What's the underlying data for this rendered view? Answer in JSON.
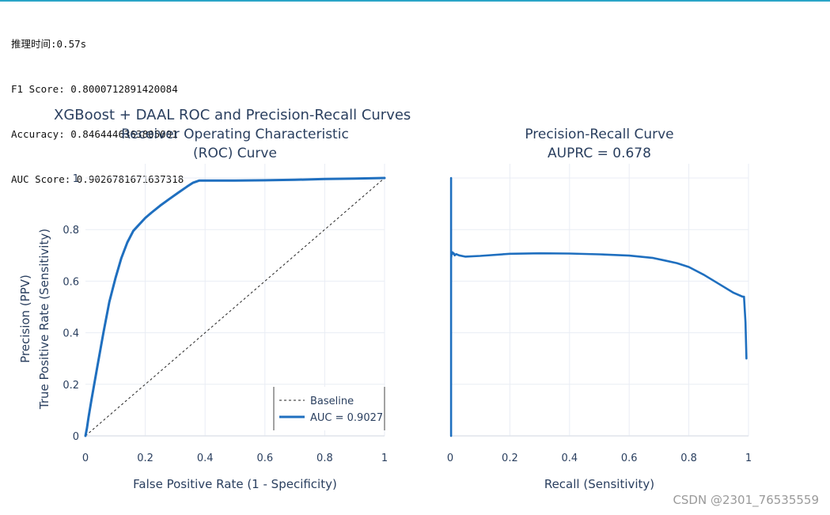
{
  "console": {
    "lines": [
      "推理时间:0.57s",
      "F1 Score: 0.8000712891420084",
      "Accuracy: 0.8464446363805001",
      "AUC Score: 0.9026781671637318"
    ]
  },
  "watermark": "CSDN @2301_76535559",
  "colors": {
    "curve": "#1f6fbf",
    "grid": "#e9edf4",
    "text": "#2a3f5f",
    "baseline": "#222222"
  },
  "chart_data": {
    "type": "line",
    "title": "XGBoost + DAAL ROC and Precision-Recall Curves",
    "subplots": [
      {
        "title_lines": [
          "Receiver Operating Characteristic",
          "(ROC) Curve"
        ],
        "xlabel": "False Positive Rate (1 - Specificity)",
        "ylabel_lines": [
          "Precision (PPV)",
          "True Positive Rate (Sensitivity)"
        ],
        "xlim": [
          0,
          1
        ],
        "ylim": [
          0,
          1
        ],
        "xticks": [
          0,
          0.2,
          0.4,
          0.6,
          0.8,
          1
        ],
        "xtick_labels": [
          "0",
          "0.2",
          "0.4",
          "0.6",
          "0.8",
          "1"
        ],
        "yticks": [
          0,
          0.2,
          0.4,
          0.6,
          0.8,
          1
        ],
        "ytick_labels": [
          "0",
          "0.2",
          "0.4",
          "0.6",
          "0.8",
          "1"
        ],
        "legend": {
          "placement": "bottom-right"
        },
        "series": [
          {
            "name": "Baseline",
            "style": "dashed",
            "x": [
              0,
              1
            ],
            "y": [
              0,
              1
            ]
          },
          {
            "name": "AUC = 0.9027",
            "style": "solid",
            "x": [
              0,
              0.005,
              0.01,
              0.02,
              0.04,
              0.06,
              0.08,
              0.1,
              0.12,
              0.14,
              0.16,
              0.18,
              0.2,
              0.22,
              0.25,
              0.28,
              0.31,
              0.34,
              0.36,
              0.38,
              0.5,
              0.6,
              0.7,
              0.8,
              0.9,
              1.0
            ],
            "y": [
              0,
              0.03,
              0.07,
              0.14,
              0.27,
              0.4,
              0.52,
              0.61,
              0.69,
              0.75,
              0.795,
              0.82,
              0.845,
              0.865,
              0.893,
              0.918,
              0.943,
              0.967,
              0.982,
              0.99,
              0.99,
              0.991,
              0.993,
              0.996,
              0.998,
              1.0
            ]
          }
        ]
      },
      {
        "title_lines": [
          "Precision-Recall Curve",
          "AUPRC = 0.678"
        ],
        "xlabel": "Recall (Sensitivity)",
        "xlim": [
          0,
          1
        ],
        "ylim": [
          0,
          1
        ],
        "xticks": [
          0,
          0.2,
          0.4,
          0.6,
          0.8,
          1
        ],
        "xtick_labels": [
          "0",
          "0.2",
          "0.4",
          "0.6",
          "0.8",
          "1"
        ],
        "yticks": [
          0,
          0.2,
          0.4,
          0.6,
          0.8,
          1
        ],
        "series": [
          {
            "name": "Precision-Recall",
            "style": "solid",
            "x": [
              0.003,
              0.003,
              0.003,
              0.004,
              0.005,
              0.006,
              0.008,
              0.01,
              0.012,
              0.015,
              0.02,
              0.03,
              0.05,
              0.1,
              0.2,
              0.3,
              0.4,
              0.5,
              0.6,
              0.68,
              0.72,
              0.76,
              0.8,
              0.85,
              0.9,
              0.95,
              0.98,
              0.985,
              0.99,
              0.993
            ],
            "y": [
              0.0,
              1.0,
              0.69,
              0.7,
              0.71,
              0.705,
              0.712,
              0.706,
              0.708,
              0.7,
              0.705,
              0.7,
              0.695,
              0.698,
              0.706,
              0.708,
              0.707,
              0.704,
              0.699,
              0.69,
              0.68,
              0.67,
              0.655,
              0.625,
              0.59,
              0.555,
              0.54,
              0.54,
              0.44,
              0.3
            ]
          }
        ]
      }
    ]
  }
}
